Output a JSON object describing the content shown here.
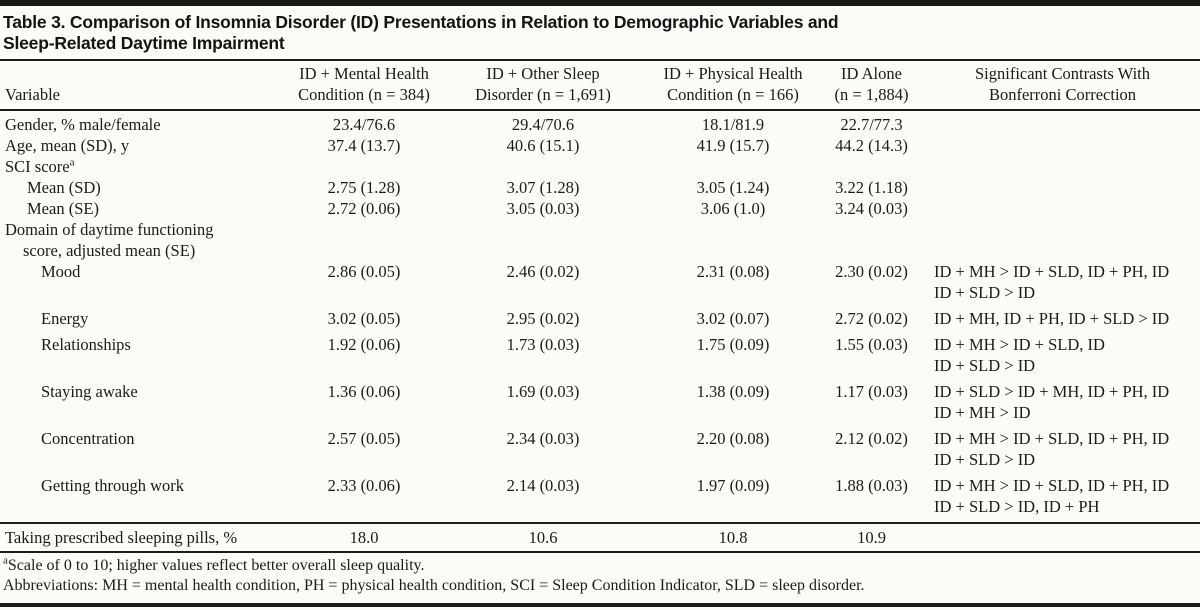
{
  "table": {
    "title": [
      "Table 3. Comparison of Insomnia Disorder (ID) Presentations in Relation to Demographic Variables and",
      "Sleep-Related Daytime Impairment"
    ],
    "columns": [
      {
        "line1": "",
        "line2": "Variable"
      },
      {
        "line1": "ID + Mental Health",
        "line2": "Condition (n = 384)"
      },
      {
        "line1": "ID + Other Sleep",
        "line2": "Disorder (n = 1,691)"
      },
      {
        "line1": "ID + Physical Health",
        "line2": "Condition (n = 166)"
      },
      {
        "line1": "ID Alone",
        "line2": "(n = 1,884)"
      },
      {
        "line1": "Significant Contrasts With",
        "line2": "Bonferroni Correction"
      }
    ],
    "rows": [
      {
        "label": "Gender, % male/female",
        "indent": 0,
        "values": [
          "23.4/76.6",
          "29.4/70.6",
          "18.1/81.9",
          "22.7/77.3"
        ],
        "contrast": []
      },
      {
        "label": "Age, mean (SD), y",
        "indent": 0,
        "values": [
          "37.4 (13.7)",
          "40.6 (15.1)",
          "41.9 (15.7)",
          "44.2 (14.3)"
        ],
        "contrast": []
      },
      {
        "label": "SCI score",
        "sup": "a",
        "indent": 0,
        "values": [
          "",
          "",
          "",
          ""
        ],
        "contrast": []
      },
      {
        "label": "Mean (SD)",
        "indent": 1,
        "values": [
          "2.75 (1.28)",
          "3.07 (1.28)",
          "3.05 (1.24)",
          "3.22 (1.18)"
        ],
        "contrast": []
      },
      {
        "label": "Mean (SE)",
        "indent": 1,
        "values": [
          "2.72 (0.06)",
          "3.05 (0.03)",
          "3.06 (1.0)",
          "3.24 (0.03)"
        ],
        "contrast": []
      },
      {
        "label": "Domain of daytime functioning",
        "label2": "score, adjusted mean (SE)",
        "indent": 0,
        "values": [
          "",
          "",
          "",
          ""
        ],
        "contrast": []
      },
      {
        "label": "Mood",
        "indent": 2,
        "values": [
          "2.86 (0.05)",
          "2.46 (0.02)",
          "2.31 (0.08)",
          "2.30 (0.02)"
        ],
        "contrast": [
          "ID + MH > ID + SLD, ID + PH, ID",
          "ID + SLD > ID"
        ]
      },
      {
        "label": "Energy",
        "indent": 2,
        "values": [
          "3.02 (0.05)",
          "2.95 (0.02)",
          "3.02 (0.07)",
          "2.72 (0.02)"
        ],
        "contrast": [
          "ID + MH, ID + PH, ID + SLD > ID"
        ]
      },
      {
        "label": "Relationships",
        "indent": 2,
        "values": [
          "1.92 (0.06)",
          "1.73 (0.03)",
          "1.75 (0.09)",
          "1.55 (0.03)"
        ],
        "contrast": [
          "ID + MH > ID + SLD, ID",
          "ID + SLD > ID"
        ]
      },
      {
        "label": "Staying awake",
        "indent": 2,
        "values": [
          "1.36 (0.06)",
          "1.69 (0.03)",
          "1.38 (0.09)",
          "1.17 (0.03)"
        ],
        "contrast": [
          "ID + SLD > ID + MH, ID + PH, ID",
          "ID + MH > ID"
        ]
      },
      {
        "label": "Concentration",
        "indent": 2,
        "values": [
          "2.57 (0.05)",
          "2.34 (0.03)",
          "2.20 (0.08)",
          "2.12 (0.02)"
        ],
        "contrast": [
          "ID + MH > ID + SLD, ID + PH, ID",
          "ID + SLD > ID"
        ]
      },
      {
        "label": "Getting through work",
        "indent": 2,
        "values": [
          "2.33 (0.06)",
          "2.14 (0.03)",
          "1.97 (0.09)",
          "1.88 (0.03)"
        ],
        "contrast": [
          "ID + MH > ID + SLD, ID + PH, ID",
          "ID + SLD > ID, ID + PH"
        ]
      },
      {
        "label": "Taking prescribed sleeping pills, %",
        "indent": 0,
        "rule_row": true,
        "values": [
          "18.0",
          "10.6",
          "10.8",
          "10.9"
        ],
        "contrast": []
      }
    ],
    "footnotes": {
      "a_marker": "a",
      "a_text": "Scale of 0 to 10; higher values reflect better overall sleep quality.",
      "abbreviations": "Abbreviations: MH = mental health condition, PH = physical health condition, SCI = Sleep Condition Indicator, SLD = sleep disorder."
    }
  },
  "colors": {
    "background": "#fbfbf8",
    "text": "#1b1b1b",
    "rule": "#1d1d1d"
  }
}
